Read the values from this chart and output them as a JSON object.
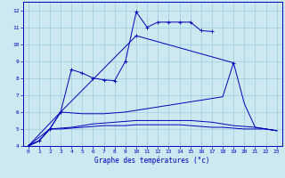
{
  "xlabel": "Graphe des températures (°c)",
  "xlim": [
    -0.5,
    23.5
  ],
  "ylim": [
    4,
    12.5
  ],
  "xticks": [
    0,
    1,
    2,
    3,
    4,
    5,
    6,
    7,
    8,
    9,
    10,
    11,
    12,
    13,
    14,
    15,
    16,
    17,
    18,
    19,
    20,
    21,
    22,
    23
  ],
  "yticks": [
    4,
    5,
    6,
    7,
    8,
    9,
    10,
    11,
    12
  ],
  "background_color": "#cce8f0",
  "grid_color": "#99cce0",
  "line_color": "#0000bb",
  "curve1_x": [
    0,
    1,
    2,
    3,
    4,
    5,
    6,
    7,
    8,
    9,
    10,
    11,
    12,
    13,
    14,
    15,
    16,
    17
  ],
  "curve1_y": [
    4.0,
    4.3,
    5.0,
    6.0,
    8.5,
    8.3,
    8.0,
    7.9,
    7.85,
    9.0,
    11.9,
    11.0,
    11.3,
    11.3,
    11.3,
    11.3,
    10.8,
    10.75
  ],
  "curve2_x": [
    0,
    3,
    10,
    19
  ],
  "curve2_y": [
    4.0,
    6.0,
    10.5,
    8.9
  ],
  "curve3_x": [
    0,
    2,
    3,
    4,
    5,
    6,
    7,
    8,
    9,
    10,
    11,
    12,
    13,
    14,
    15,
    16,
    17,
    18,
    19,
    20,
    21,
    22,
    23
  ],
  "curve3_y": [
    4.0,
    5.0,
    6.0,
    5.95,
    5.9,
    5.9,
    5.9,
    5.95,
    6.0,
    6.1,
    6.2,
    6.3,
    6.4,
    6.5,
    6.6,
    6.7,
    6.8,
    6.9,
    8.9,
    6.5,
    5.1,
    5.0,
    4.9
  ],
  "curve4_x": [
    0,
    1,
    2,
    3,
    4,
    5,
    6,
    7,
    8,
    9,
    10,
    11,
    12,
    13,
    14,
    15,
    16,
    17,
    18,
    19,
    20,
    21,
    22,
    23
  ],
  "curve4_y": [
    4.0,
    4.3,
    5.0,
    5.05,
    5.1,
    5.2,
    5.3,
    5.35,
    5.4,
    5.45,
    5.5,
    5.5,
    5.5,
    5.5,
    5.5,
    5.5,
    5.45,
    5.4,
    5.3,
    5.2,
    5.15,
    5.1,
    5.0,
    4.9
  ],
  "curve5_x": [
    0,
    1,
    2,
    3,
    4,
    5,
    6,
    7,
    8,
    9,
    10,
    11,
    12,
    13,
    14,
    15,
    16,
    17,
    18,
    19,
    20,
    21,
    22,
    23
  ],
  "curve5_y": [
    4.0,
    4.3,
    5.0,
    5.0,
    5.05,
    5.1,
    5.15,
    5.2,
    5.2,
    5.2,
    5.25,
    5.25,
    5.25,
    5.25,
    5.25,
    5.2,
    5.15,
    5.1,
    5.1,
    5.05,
    5.0,
    5.0,
    5.0,
    4.9
  ]
}
